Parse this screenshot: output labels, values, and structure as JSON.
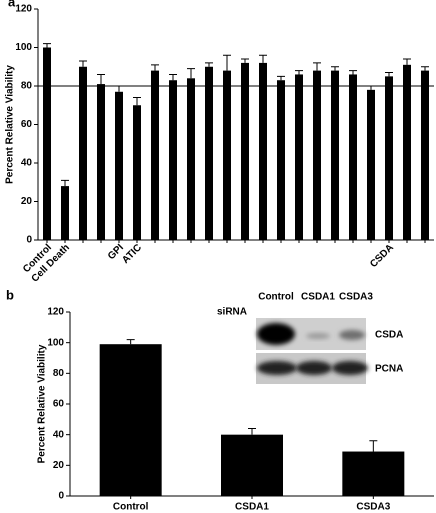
{
  "chart_data": [
    {
      "type": "bar",
      "panel_label": "a",
      "y_label": "Percent Relative Viability",
      "categories": [
        "Control",
        "Cell Death",
        null,
        null,
        "GPI",
        "ATIC",
        null,
        null,
        null,
        null,
        null,
        null,
        null,
        null,
        null,
        null,
        null,
        null,
        null,
        "CSDA",
        null,
        null
      ],
      "values": [
        100,
        28,
        90,
        81,
        77,
        70,
        88,
        83,
        84,
        90,
        88,
        92,
        92,
        83,
        86,
        88,
        88,
        86,
        78,
        85,
        91,
        88
      ],
      "errors": [
        2,
        3,
        3,
        5,
        3,
        4,
        3,
        3,
        5,
        2,
        8,
        2,
        4,
        2,
        2,
        4,
        2,
        2,
        2,
        2,
        3,
        2
      ],
      "color": "#000000",
      "reference_line": 80,
      "ylim": [
        0,
        120
      ],
      "yticks": [
        0,
        20,
        40,
        60,
        80,
        100,
        120
      ]
    },
    {
      "type": "bar",
      "panel_label": "b",
      "y_label": "Percent Relative Viability",
      "categories": [
        "Control",
        "CSDA1",
        "CSDA3"
      ],
      "values": [
        99,
        40,
        29
      ],
      "errors": [
        3,
        4,
        7
      ],
      "color": "#000000",
      "ylim": [
        0,
        120
      ],
      "yticks": [
        0,
        20,
        40,
        60,
        80,
        100,
        120
      ],
      "inset": {
        "row_label": "siRNA",
        "lanes": [
          "Control",
          "CSDA1",
          "CSDA3"
        ],
        "bands": [
          "CSDA",
          "PCNA"
        ]
      }
    }
  ]
}
